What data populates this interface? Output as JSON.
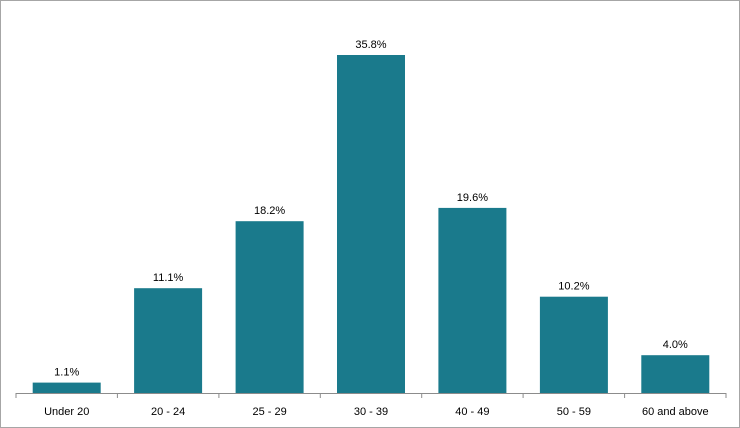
{
  "chart_data": {
    "type": "bar",
    "categories": [
      "Under 20",
      "20 - 24",
      "25 - 29",
      "30 - 39",
      "40 - 49",
      "50 - 59",
      "60 and above"
    ],
    "values": [
      1.1,
      11.1,
      18.2,
      35.8,
      19.6,
      10.2,
      4.0
    ],
    "data_labels": [
      "1.1%",
      "11.1%",
      "18.2%",
      "35.8%",
      "19.6%",
      "10.2%",
      "4.0%"
    ],
    "bar_color": "#1a7a8c",
    "axis_color": "#8c8c8c",
    "ylim": [
      0,
      35.8
    ],
    "grid": false,
    "legend": "none"
  }
}
